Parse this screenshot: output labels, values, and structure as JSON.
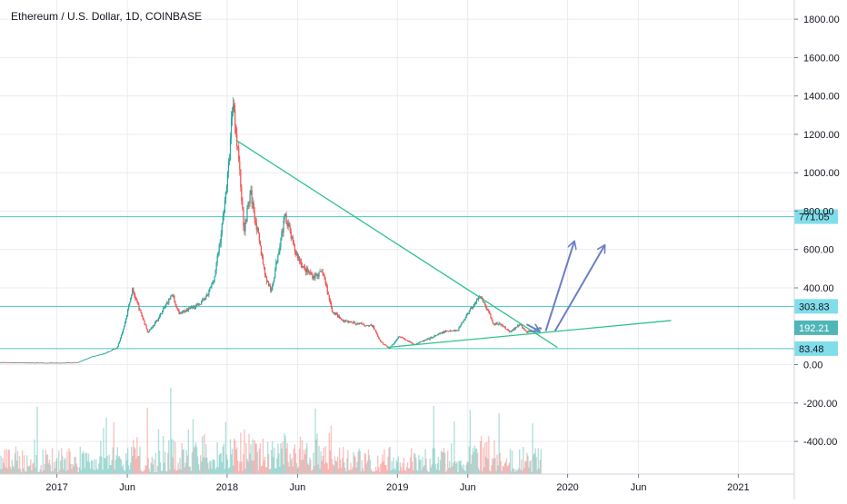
{
  "chart_data": {
    "type": "candlestick",
    "title": "Ethereum / U.S. Dollar, 1D, COINBASE",
    "ylim": [
      -570,
      1900
    ],
    "y_ticks": [
      {
        "value": 1800,
        "label": "1800.00"
      },
      {
        "value": 1600,
        "label": "1600.00"
      },
      {
        "value": 1400,
        "label": "1400.00"
      },
      {
        "value": 1200,
        "label": "1200.00"
      },
      {
        "value": 1000,
        "label": "1000.00"
      },
      {
        "value": 800,
        "label": "800.00"
      },
      {
        "value": 600,
        "label": "600.00"
      },
      {
        "value": 400,
        "label": "400.00"
      },
      {
        "value": 0,
        "label": "0.00"
      },
      {
        "value": -200,
        "label": "-200.00"
      },
      {
        "value": -400,
        "label": "-400.00"
      }
    ],
    "x_ticks": [
      {
        "date": "2017-01-01",
        "label": "2017"
      },
      {
        "date": "2017-06-01",
        "label": "Jun"
      },
      {
        "date": "2018-01-01",
        "label": "2018"
      },
      {
        "date": "2018-06-01",
        "label": "Jun"
      },
      {
        "date": "2019-01-01",
        "label": "2019"
      },
      {
        "date": "2019-06-01",
        "label": "Jun"
      },
      {
        "date": "2020-01-01",
        "label": "2020"
      },
      {
        "date": "2020-06-01",
        "label": "Jun"
      },
      {
        "date": "2021-01-01",
        "label": "2021"
      }
    ],
    "xlim": [
      "2016-09-01",
      "2021-05-01"
    ],
    "price_series": [
      {
        "date": "2016-09-01",
        "price": 12
      },
      {
        "date": "2016-11-01",
        "price": 10
      },
      {
        "date": "2017-01-01",
        "price": 9
      },
      {
        "date": "2017-02-15",
        "price": 12
      },
      {
        "date": "2017-03-15",
        "price": 40
      },
      {
        "date": "2017-04-15",
        "price": 60
      },
      {
        "date": "2017-05-10",
        "price": 90
      },
      {
        "date": "2017-05-25",
        "price": 200
      },
      {
        "date": "2017-06-12",
        "price": 390
      },
      {
        "date": "2017-06-25",
        "price": 300
      },
      {
        "date": "2017-07-15",
        "price": 170
      },
      {
        "date": "2017-08-01",
        "price": 220
      },
      {
        "date": "2017-08-25",
        "price": 320
      },
      {
        "date": "2017-09-05",
        "price": 370
      },
      {
        "date": "2017-09-20",
        "price": 260
      },
      {
        "date": "2017-10-15",
        "price": 300
      },
      {
        "date": "2017-11-01",
        "price": 310
      },
      {
        "date": "2017-11-20",
        "price": 360
      },
      {
        "date": "2017-12-05",
        "price": 460
      },
      {
        "date": "2017-12-20",
        "price": 700
      },
      {
        "date": "2018-01-05",
        "price": 1050
      },
      {
        "date": "2018-01-13",
        "price": 1390
      },
      {
        "date": "2018-01-25",
        "price": 1100
      },
      {
        "date": "2018-02-06",
        "price": 700
      },
      {
        "date": "2018-02-20",
        "price": 900
      },
      {
        "date": "2018-03-10",
        "price": 650
      },
      {
        "date": "2018-03-25",
        "price": 450
      },
      {
        "date": "2018-04-06",
        "price": 380
      },
      {
        "date": "2018-04-25",
        "price": 650
      },
      {
        "date": "2018-05-06",
        "price": 780
      },
      {
        "date": "2018-05-25",
        "price": 600
      },
      {
        "date": "2018-06-15",
        "price": 500
      },
      {
        "date": "2018-07-05",
        "price": 460
      },
      {
        "date": "2018-07-25",
        "price": 480
      },
      {
        "date": "2018-08-14",
        "price": 280
      },
      {
        "date": "2018-09-05",
        "price": 230
      },
      {
        "date": "2018-09-25",
        "price": 220
      },
      {
        "date": "2018-10-15",
        "price": 210
      },
      {
        "date": "2018-11-10",
        "price": 200
      },
      {
        "date": "2018-11-25",
        "price": 120
      },
      {
        "date": "2018-12-15",
        "price": 85
      },
      {
        "date": "2019-01-05",
        "price": 150
      },
      {
        "date": "2019-02-05",
        "price": 105
      },
      {
        "date": "2019-03-10",
        "price": 135
      },
      {
        "date": "2019-04-10",
        "price": 170
      },
      {
        "date": "2019-05-10",
        "price": 180
      },
      {
        "date": "2019-05-30",
        "price": 260
      },
      {
        "date": "2019-06-26",
        "price": 355
      },
      {
        "date": "2019-07-10",
        "price": 300
      },
      {
        "date": "2019-07-25",
        "price": 215
      },
      {
        "date": "2019-08-10",
        "price": 210
      },
      {
        "date": "2019-08-30",
        "price": 170
      },
      {
        "date": "2019-09-20",
        "price": 210
      },
      {
        "date": "2019-10-05",
        "price": 170
      },
      {
        "date": "2019-10-25",
        "price": 180
      },
      {
        "date": "2019-11-05",
        "price": 192
      }
    ],
    "horizontal_levels": [
      {
        "value": 771.05,
        "label": "771.05"
      },
      {
        "value": 303.83,
        "label": "303.83"
      },
      {
        "value": 83.48,
        "label": "83.48"
      }
    ],
    "last_price": {
      "value": 192.21,
      "label": "192.21"
    },
    "trendlines": [
      {
        "from": {
          "date": "2018-01-20",
          "value": 1170
        },
        "to": {
          "date": "2019-12-10",
          "value": 90
        }
      },
      {
        "from": {
          "date": "2018-12-10",
          "value": 90
        },
        "to": {
          "date": "2020-08-10",
          "value": 230
        }
      }
    ],
    "arrows": [
      {
        "from": {
          "date": "2019-10-05",
          "value": 210
        },
        "to": {
          "date": "2019-11-01",
          "value": 175
        }
      },
      {
        "from": {
          "date": "2019-11-15",
          "value": 175
        },
        "to": {
          "date": "2020-01-15",
          "value": 640
        }
      },
      {
        "from": {
          "date": "2019-12-05",
          "value": 175
        },
        "to": {
          "date": "2020-03-20",
          "value": 620
        }
      }
    ],
    "colors": {
      "up": "#26a69a",
      "down": "#ef5350",
      "level_line": "#4fc3c7",
      "level_badge": "#80deea",
      "last_price_badge": "#4fb6b8",
      "trendline": "#2ec38d",
      "arrow": "#6b7fc9",
      "grid": "#e9ecf1"
    }
  }
}
